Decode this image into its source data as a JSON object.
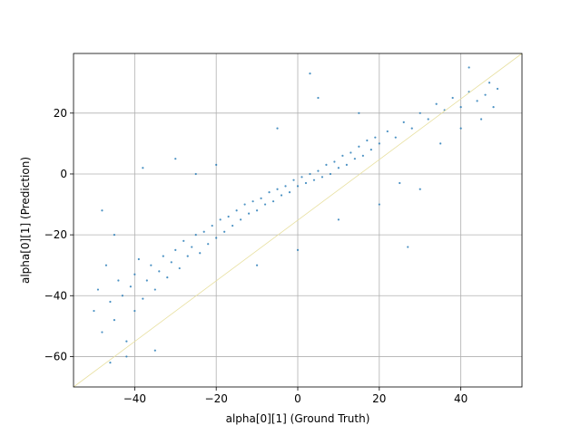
{
  "chart_data": {
    "type": "scatter",
    "x_label": "alpha[0][1] (Ground Truth)",
    "y_label": "alpha[0][1] (Prediction)",
    "color": "#1f77b4",
    "grid": true,
    "xlim": [
      -55,
      55
    ],
    "ylim": [
      -70,
      39.6
    ],
    "xticks": [
      {
        "value": -40,
        "label": "−40"
      },
      {
        "value": -20,
        "label": "−20"
      },
      0,
      20,
      40
    ],
    "yticks": [
      {
        "value": -60,
        "label": "−60"
      },
      {
        "value": -40,
        "label": "−40"
      },
      {
        "value": -20,
        "label": "−20"
      },
      0,
      20
    ],
    "x": [
      -50,
      -49,
      -48,
      -47,
      -46,
      -45,
      -44,
      -43,
      -42,
      -41,
      -40,
      -40,
      -39,
      -38,
      -37,
      -36,
      -35,
      -34,
      -33,
      -32,
      -31,
      -30,
      -29,
      -28,
      -27,
      -26,
      -25,
      -24,
      -23,
      -22,
      -21,
      -20,
      -19,
      -18,
      -17,
      -16,
      -15,
      -14,
      -13,
      -12,
      -11,
      -10,
      -9,
      -8,
      -7,
      -6,
      -5,
      -4,
      -3,
      -2,
      -1,
      0,
      1,
      2,
      3,
      4,
      5,
      6,
      7,
      8,
      9,
      10,
      11,
      12,
      13,
      14,
      15,
      16,
      17,
      18,
      19,
      20,
      22,
      24,
      26,
      28,
      30,
      32,
      34,
      36,
      38,
      40,
      42,
      44,
      46,
      48,
      49,
      -48,
      -45,
      -38,
      -30,
      -25,
      -20,
      -10,
      0,
      3,
      10,
      20,
      25,
      30,
      35,
      40,
      45,
      -35,
      -42,
      -46,
      15,
      5,
      -5,
      27,
      47,
      42
    ],
    "y": [
      -45,
      -38,
      -52,
      -30,
      -42,
      -48,
      -35,
      -40,
      -55,
      -37,
      -33,
      -45,
      -28,
      -41,
      -35,
      -30,
      -38,
      -32,
      -27,
      -34,
      -29,
      -25,
      -31,
      -22,
      -27,
      -24,
      -20,
      -26,
      -19,
      -23,
      -17,
      -21,
      -15,
      -19,
      -14,
      -17,
      -12,
      -15,
      -10,
      -13,
      -9,
      -12,
      -8,
      -10,
      -6,
      -9,
      -5,
      -7,
      -4,
      -6,
      -2,
      -4,
      -1,
      -3,
      0,
      -2,
      1,
      -1,
      3,
      0,
      4,
      2,
      6,
      3,
      7,
      5,
      9,
      6,
      11,
      8,
      12,
      10,
      14,
      12,
      17,
      15,
      20,
      18,
      23,
      21,
      25,
      22,
      27,
      24,
      26,
      22,
      28,
      -12,
      -20,
      2,
      5,
      0,
      3,
      -30,
      -25,
      33,
      -15,
      -10,
      -3,
      -5,
      10,
      15,
      18,
      -58,
      -60,
      -62,
      20,
      25,
      15,
      -24,
      30,
      35
    ]
  }
}
